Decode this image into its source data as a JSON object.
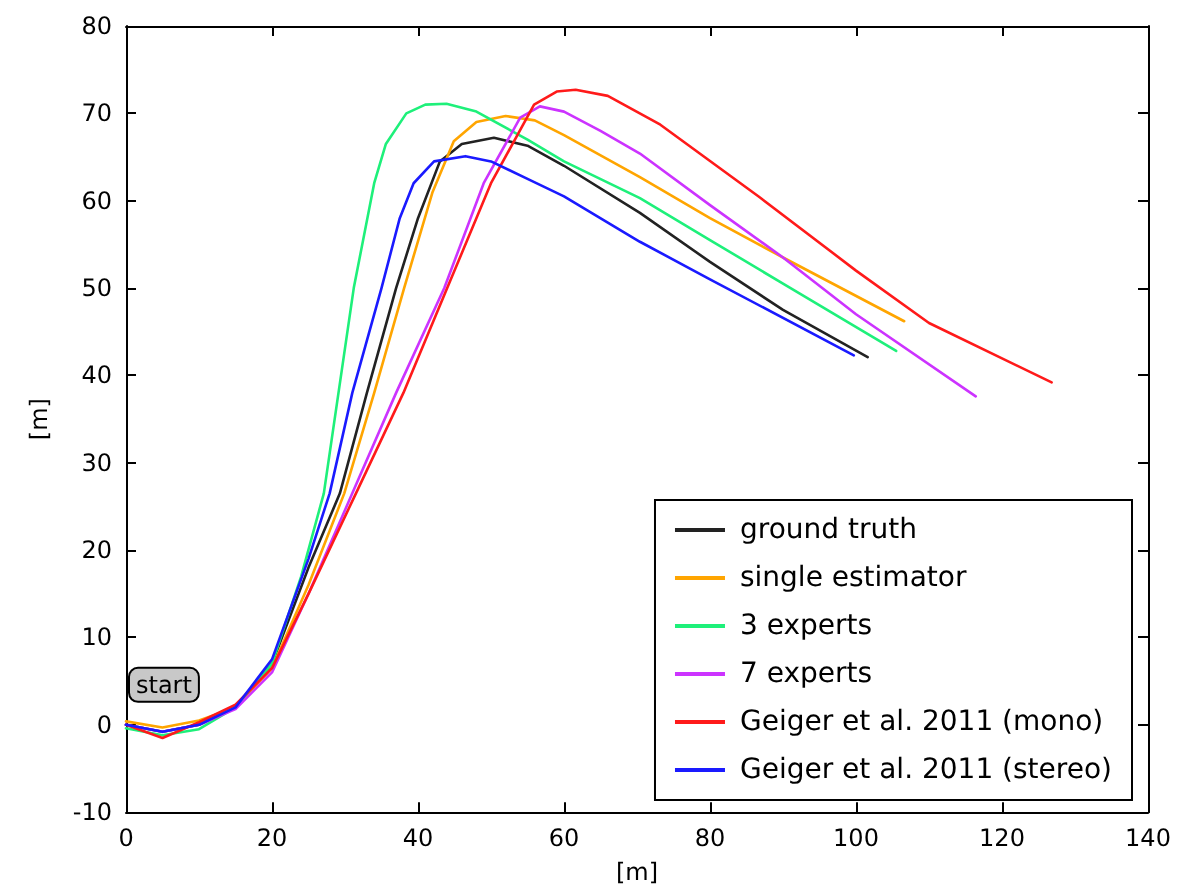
{
  "chart_data": {
    "type": "line",
    "xlabel": "[m]",
    "ylabel": "[m]",
    "xlim": [
      0,
      140
    ],
    "ylim": [
      -10,
      80
    ],
    "xticks": [
      0,
      20,
      40,
      60,
      80,
      100,
      120,
      140
    ],
    "yticks": [
      -10,
      0,
      10,
      20,
      30,
      40,
      50,
      60,
      70,
      80
    ],
    "grid": false,
    "legend": "bottom right",
    "marker": "none",
    "line_style": "solid",
    "annotations": [
      {
        "text": "start",
        "x": 0,
        "y": 0
      }
    ],
    "series": [
      {
        "name": "ground truth",
        "color": "#222222",
        "x": [
          0,
          5,
          10,
          15,
          20,
          25,
          29.3,
          33,
          37,
          40,
          43,
          46,
          50.4,
          55,
          60,
          70.4,
          80,
          90,
          101.6
        ],
        "values": [
          0,
          -0.8,
          0,
          2,
          7,
          18,
          26.5,
          38,
          50,
          58,
          64.5,
          66.5,
          67.2,
          66.3,
          64,
          58.6,
          53,
          47.5,
          42.1
        ]
      },
      {
        "name": "single estimator",
        "color": "#ffa500",
        "x": [
          0,
          5,
          10,
          15,
          20,
          25,
          29.9,
          34,
          38.1,
          42,
          44.9,
          48,
          52,
          56,
          60,
          70.4,
          80,
          90,
          106.6
        ],
        "values": [
          0.4,
          -0.3,
          0.5,
          2,
          6.5,
          16,
          26.5,
          38,
          50,
          61,
          66.8,
          69,
          69.7,
          69.2,
          67.5,
          62.7,
          58,
          53.5,
          46.2
        ]
      },
      {
        "name": "3 experts",
        "color": "#1ef07a",
        "x": [
          0,
          5,
          10,
          15,
          20,
          24,
          27.1,
          31.2,
          34,
          35.6,
          38.4,
          41,
          43.9,
          48,
          55,
          60,
          70.4,
          80,
          90,
          105.5
        ],
        "values": [
          -0.4,
          -1.2,
          -0.5,
          2,
          7,
          17,
          26.5,
          50,
          62,
          66.5,
          70,
          71,
          71.1,
          70.2,
          67,
          64.5,
          60.3,
          55.5,
          50.5,
          42.8
        ]
      },
      {
        "name": "7 experts",
        "color": "#cc33ff",
        "x": [
          0,
          5,
          10,
          15,
          20,
          25,
          31,
          37,
          43.6,
          49,
          54,
          56.7,
          60,
          65,
          70.4,
          80,
          90,
          100,
          116.4
        ],
        "values": [
          0,
          -0.8,
          0,
          1.8,
          6,
          15,
          26.5,
          38,
          50,
          62,
          69.5,
          70.8,
          70.2,
          68,
          65.4,
          59.5,
          53.5,
          47,
          37.6
        ]
      },
      {
        "name": "Geiger et al. 2011 (mono)",
        "color": "#ff1a1a",
        "x": [
          0,
          5,
          10,
          15,
          20,
          25,
          31.5,
          38,
          44,
          50,
          55.9,
          59,
          61.6,
          66,
          73.2,
          86.8,
          100,
          110,
          126.8
        ],
        "values": [
          0,
          -1.5,
          0.3,
          2.3,
          6.5,
          15,
          26.5,
          38,
          50,
          62,
          71,
          72.5,
          72.7,
          72,
          68.7,
          60.4,
          52,
          46,
          39.2
        ]
      },
      {
        "name": "Geiger et al. 2011 (stereo)",
        "color": "#1a1aff",
        "x": [
          0,
          5,
          10,
          15,
          20,
          25,
          27.9,
          31,
          35,
          37.5,
          39.4,
          42.2,
          46.5,
          50,
          55,
          60,
          70.4,
          80,
          99.7
        ],
        "values": [
          0,
          -0.8,
          0,
          2,
          7.5,
          19,
          26.5,
          38,
          50,
          58,
          62,
          64.5,
          65.1,
          64.5,
          62.5,
          60.5,
          55.3,
          51,
          42.3
        ]
      }
    ]
  }
}
